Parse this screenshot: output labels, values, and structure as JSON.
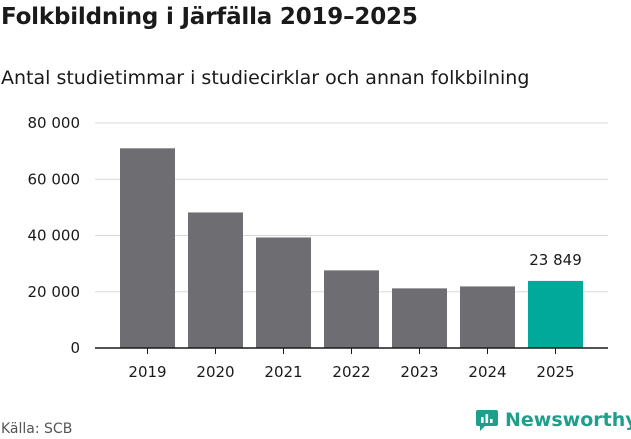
{
  "title": "Folkbildning i Järfälla 2019–2025",
  "subtitle": "Antal studietimmar i studiecirklar och annan folkbilning",
  "source": "Källa: SCB",
  "brand": {
    "label": "Newsworthy",
    "icon": "newsworthy-logo-icon",
    "color": "#1f9e8c"
  },
  "chart_data": {
    "type": "bar",
    "categories": [
      "2019",
      "2020",
      "2021",
      "2022",
      "2023",
      "2024",
      "2025"
    ],
    "values": [
      71000,
      48200,
      39300,
      27600,
      21200,
      21900,
      23849
    ],
    "highlight_index": 6,
    "data_labels": [
      {
        "index": 6,
        "text": "23 849"
      }
    ],
    "ylim": [
      0,
      80000
    ],
    "yticks": [
      0,
      20000,
      40000,
      60000,
      80000
    ],
    "ytick_labels": [
      "0",
      "20 000",
      "40 000",
      "60 000",
      "80 000"
    ],
    "xlabel": "",
    "ylabel": "",
    "grid": true,
    "colors": {
      "bar": "#6e6d72",
      "highlight": "#00a99a",
      "grid": "#d9d9d9",
      "axis": "#1a1a1a"
    }
  }
}
